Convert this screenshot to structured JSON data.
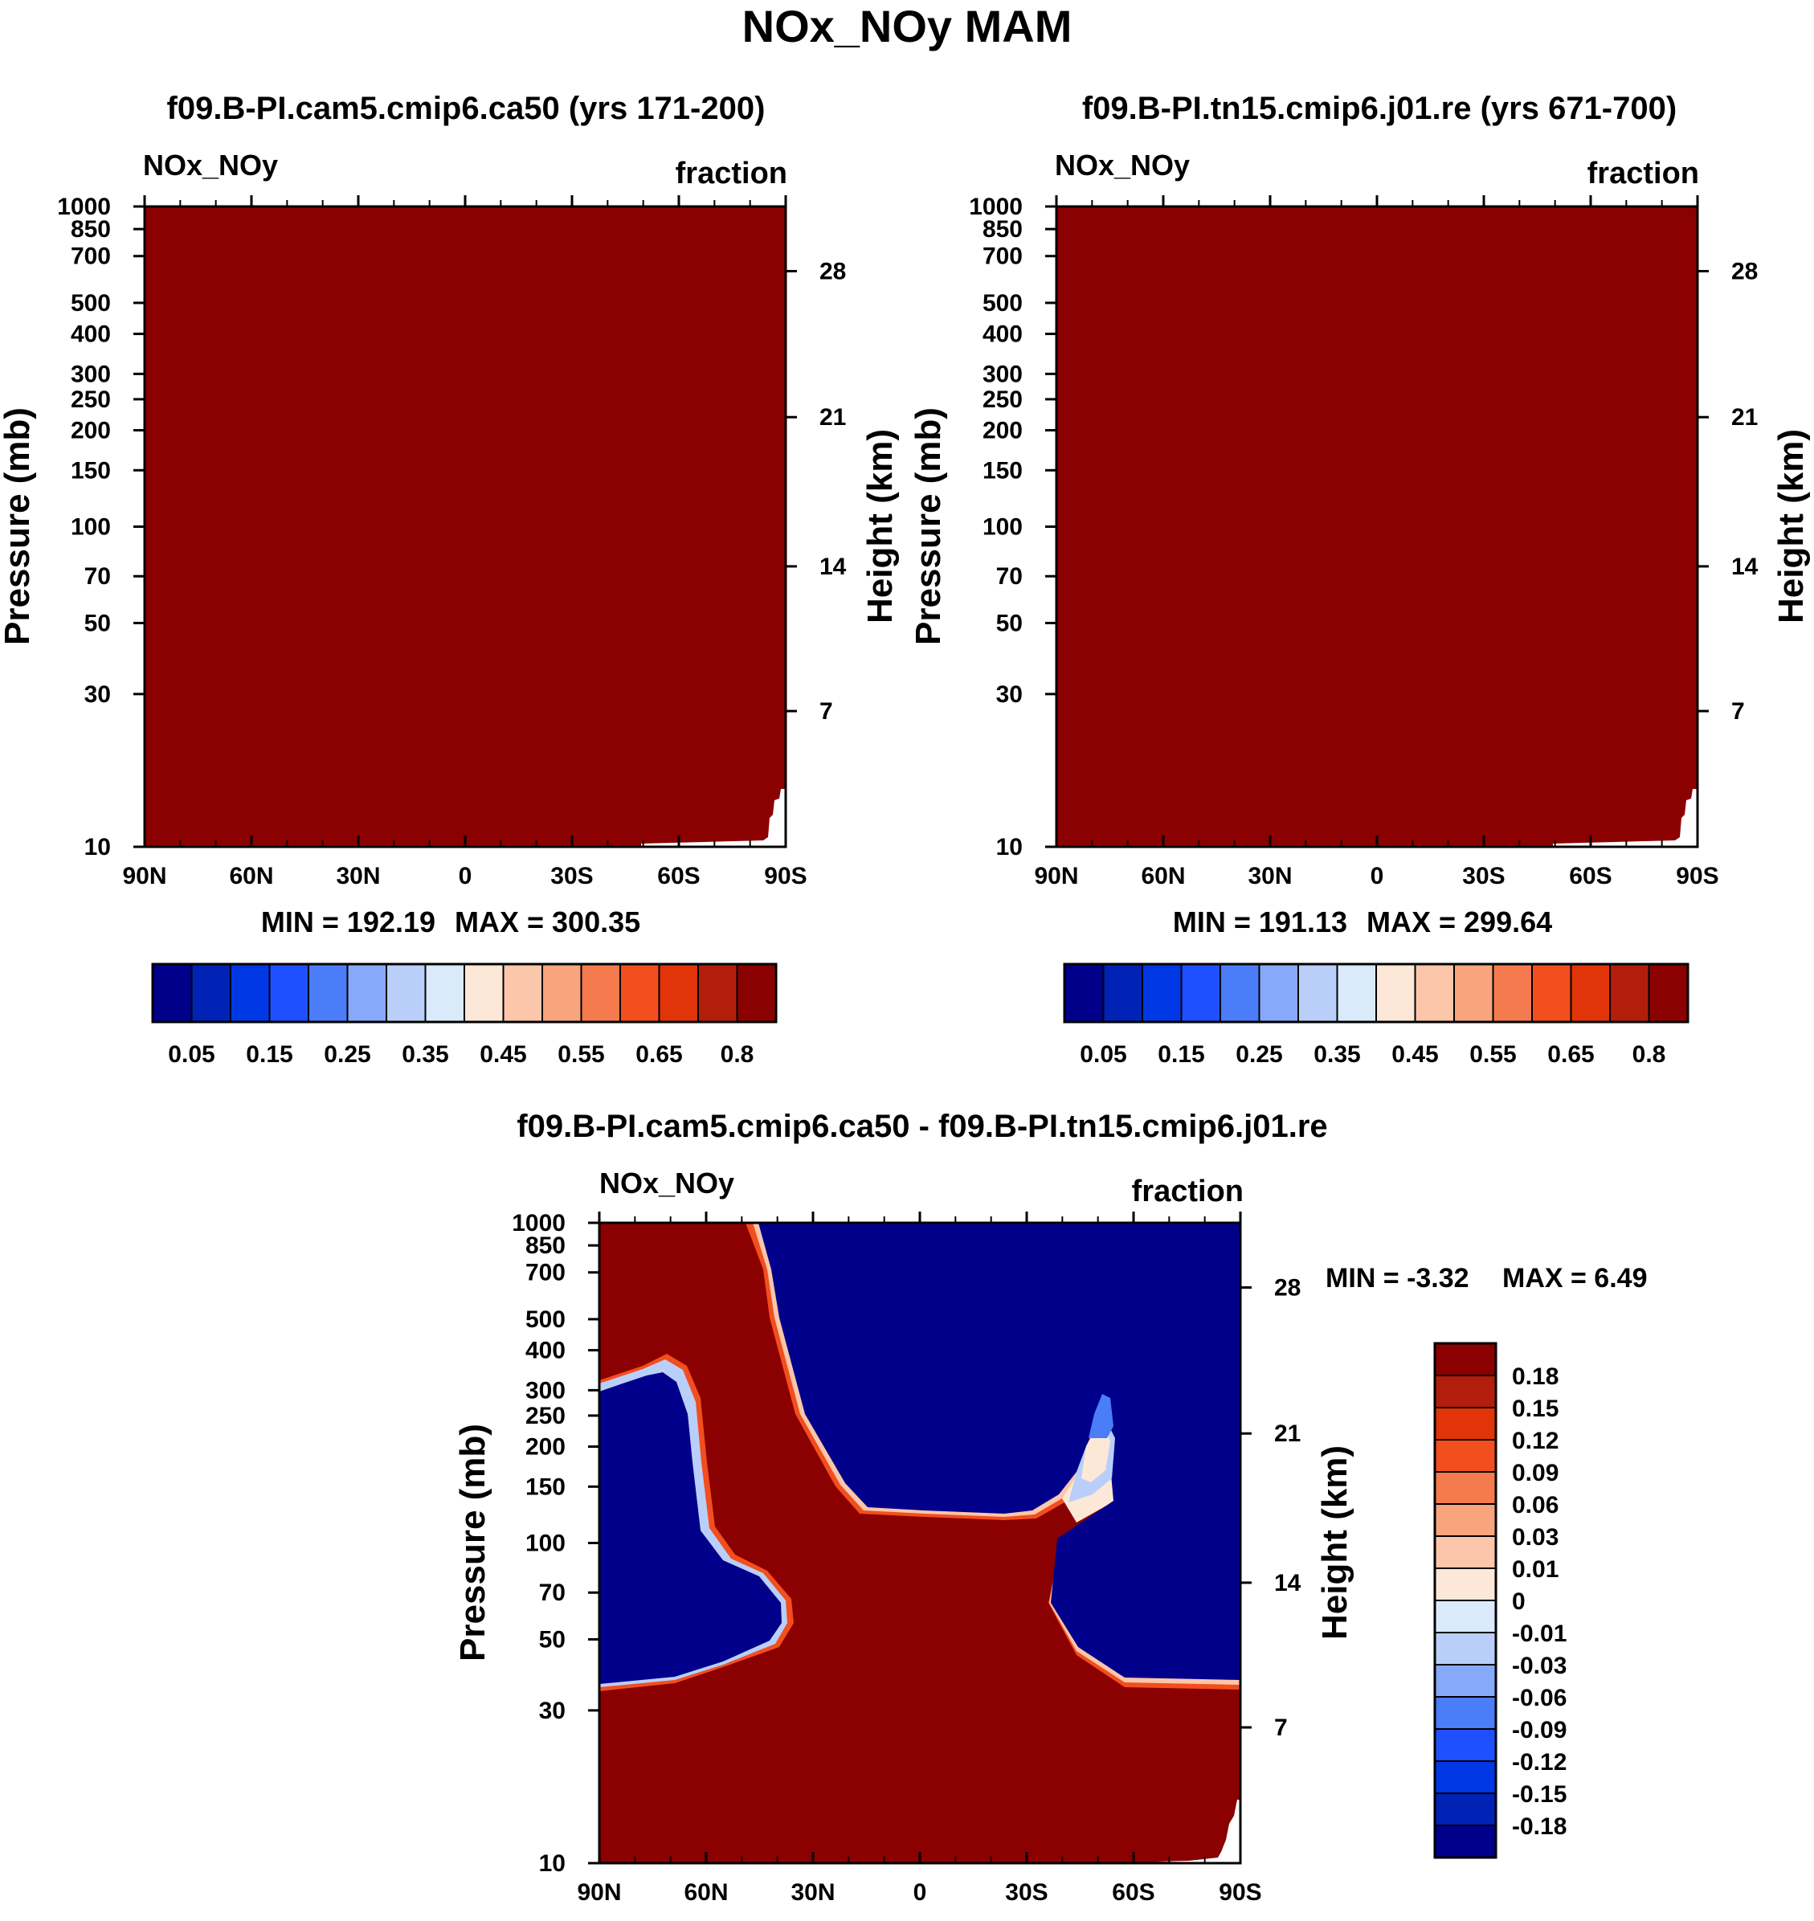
{
  "title": "NOx_NOy MAM",
  "chart_data": [
    {
      "type": "heatmap",
      "id": "panel1",
      "title": "f09.B-PI.cam5.cmip6.ca50 (yrs 171-200)",
      "variable": "NOx_NOy",
      "units": "fraction",
      "ylabel": "Pressure (mb)",
      "y2label": "Height (km)",
      "x_ticks": [
        "90N",
        "60N",
        "30N",
        "0",
        "30S",
        "60S",
        "90S"
      ],
      "y_ticks": [
        "10",
        "30",
        "50",
        "70",
        "100",
        "150",
        "200",
        "250",
        "300",
        "400",
        "500",
        "700",
        "850",
        "1000"
      ],
      "y2_ticks": [
        "28",
        "21",
        "14",
        "7"
      ],
      "min_label": "MIN = 192.19",
      "max_label": "MAX = 300.35",
      "field": "near-uniform maximum (>0.8) over entire domain; white gap at surface near 90S",
      "colorbar": {
        "orientation": "horizontal",
        "labels": [
          "0.05",
          "0.15",
          "0.25",
          "0.35",
          "0.45",
          "0.55",
          "0.65",
          "0.8"
        ],
        "colors": [
          "#00008b",
          "#0022b5",
          "#0038e6",
          "#1e50ff",
          "#4a7df7",
          "#86aaf9",
          "#b9cff9",
          "#daeafa",
          "#fde8d7",
          "#fbc6a9",
          "#f8a47d",
          "#f57a4e",
          "#f24e1e",
          "#e13409",
          "#b21e0b",
          "#8b0000"
        ]
      }
    },
    {
      "type": "heatmap",
      "id": "panel2",
      "title": "f09.B-PI.tn15.cmip6.j01.re (yrs 671-700)",
      "variable": "NOx_NOy",
      "units": "fraction",
      "ylabel": "Pressure (mb)",
      "y2label": "Height (km)",
      "x_ticks": [
        "90N",
        "60N",
        "30N",
        "0",
        "30S",
        "60S",
        "90S"
      ],
      "y_ticks": [
        "10",
        "30",
        "50",
        "70",
        "100",
        "150",
        "200",
        "250",
        "300",
        "400",
        "500",
        "700",
        "850",
        "1000"
      ],
      "y2_ticks": [
        "28",
        "21",
        "14",
        "7"
      ],
      "min_label": "MIN = 191.13",
      "max_label": "MAX = 299.64",
      "field": "near-uniform maximum (>0.8) over entire domain; white gap at surface near 90S",
      "colorbar": {
        "orientation": "horizontal",
        "labels": [
          "0.05",
          "0.15",
          "0.25",
          "0.35",
          "0.45",
          "0.55",
          "0.65",
          "0.8"
        ],
        "colors": [
          "#00008b",
          "#0022b5",
          "#0038e6",
          "#1e50ff",
          "#4a7df7",
          "#86aaf9",
          "#b9cff9",
          "#daeafa",
          "#fde8d7",
          "#fbc6a9",
          "#f8a47d",
          "#f57a4e",
          "#f24e1e",
          "#e13409",
          "#b21e0b",
          "#8b0000"
        ]
      }
    },
    {
      "type": "heatmap",
      "id": "panel3",
      "title": "f09.B-PI.cam5.cmip6.ca50 - f09.B-PI.tn15.cmip6.j01.re",
      "variable": "NOx_NOy",
      "units": "fraction",
      "ylabel": "Pressure (mb)",
      "y2label": "Height (km)",
      "x_ticks": [
        "90N",
        "60N",
        "30N",
        "0",
        "30S",
        "60S",
        "90S"
      ],
      "y_ticks": [
        "10",
        "30",
        "50",
        "70",
        "100",
        "150",
        "200",
        "250",
        "300",
        "400",
        "500",
        "700",
        "850",
        "1000"
      ],
      "y2_ticks": [
        "28",
        "21",
        "14",
        "7"
      ],
      "min_label": "MIN =  -3.32",
      "max_label": "MAX =   6.49",
      "field": "positive (>0.18) in troposphere and along a tongue from 50N stratosphere to the tropical tropopause; negative (<-0.18) in the stratosphere over both high-latitude regions",
      "colorbar": {
        "orientation": "vertical",
        "labels": [
          "0.18",
          "0.15",
          "0.12",
          "0.09",
          "0.06",
          "0.03",
          "0.01",
          "0",
          "-0.01",
          "-0.03",
          "-0.06",
          "-0.09",
          "-0.12",
          "-0.15",
          "-0.18"
        ],
        "colors": [
          "#8b0000",
          "#b21e0b",
          "#e13409",
          "#f24e1e",
          "#f57a4e",
          "#f8a47d",
          "#fbc6a9",
          "#fde8d7",
          "#daeafa",
          "#b9cff9",
          "#86aaf9",
          "#4a7df7",
          "#1e50ff",
          "#0038e6",
          "#0022b5",
          "#00008b"
        ]
      }
    }
  ]
}
